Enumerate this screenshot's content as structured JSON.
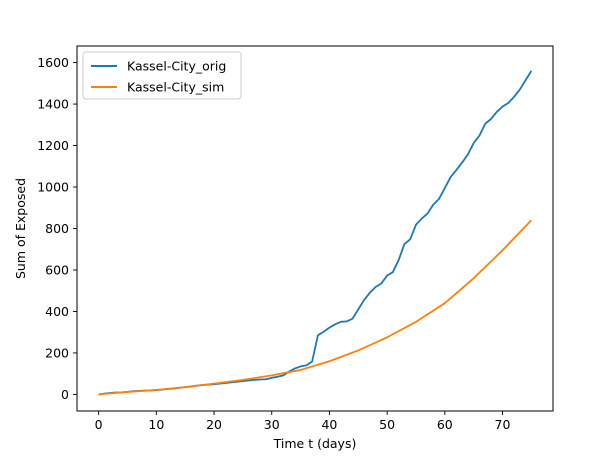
{
  "chart_data": {
    "type": "line",
    "xlabel": "Time t (days)",
    "ylabel": "Sum of Exposed",
    "xlim": [
      -3.75,
      78.75
    ],
    "ylim": [
      -80,
      1680
    ],
    "xticks": [
      0,
      10,
      20,
      30,
      40,
      50,
      60,
      70
    ],
    "yticks": [
      0,
      200,
      400,
      600,
      800,
      1000,
      1200,
      1400,
      1600
    ],
    "grid": false,
    "legend_position": "top-left",
    "series": [
      {
        "name": "Kassel-City_orig",
        "color": "#1f77b4",
        "x": [
          0,
          1,
          2,
          3,
          4,
          5,
          6,
          7,
          8,
          9,
          10,
          11,
          12,
          13,
          14,
          15,
          16,
          17,
          18,
          19,
          20,
          21,
          22,
          23,
          24,
          25,
          26,
          27,
          28,
          29,
          30,
          31,
          32,
          33,
          34,
          35,
          36,
          37,
          38,
          39,
          40,
          41,
          42,
          43,
          44,
          45,
          46,
          47,
          48,
          49,
          50,
          51,
          52,
          53,
          54,
          55,
          56,
          57,
          58,
          59,
          60,
          61,
          62,
          63,
          64,
          65,
          66,
          67,
          68,
          69,
          70,
          71,
          72,
          73,
          74,
          75
        ],
        "y": [
          0,
          4,
          7,
          9,
          10,
          12,
          16,
          17,
          18,
          19,
          21,
          23,
          26,
          28,
          32,
          35,
          38,
          42,
          45,
          47,
          49,
          52,
          55,
          58,
          61,
          64,
          67,
          70,
          72,
          73,
          80,
          85,
          92,
          110,
          125,
          135,
          140,
          158,
          285,
          302,
          322,
          338,
          350,
          352,
          365,
          410,
          455,
          490,
          518,
          535,
          573,
          590,
          648,
          725,
          748,
          818,
          848,
          872,
          915,
          943,
          995,
          1048,
          1082,
          1118,
          1157,
          1212,
          1248,
          1305,
          1328,
          1362,
          1388,
          1405,
          1435,
          1470,
          1515,
          1560
        ]
      },
      {
        "name": "Kassel-City_sim",
        "color": "#ff7f0e",
        "x": [
          0,
          5,
          10,
          15,
          20,
          25,
          30,
          35,
          40,
          45,
          50,
          55,
          60,
          65,
          70,
          75
        ],
        "y": [
          0,
          12,
          22,
          35,
          52,
          70,
          92,
          118,
          160,
          212,
          275,
          350,
          440,
          560,
          695,
          840
        ]
      }
    ]
  }
}
